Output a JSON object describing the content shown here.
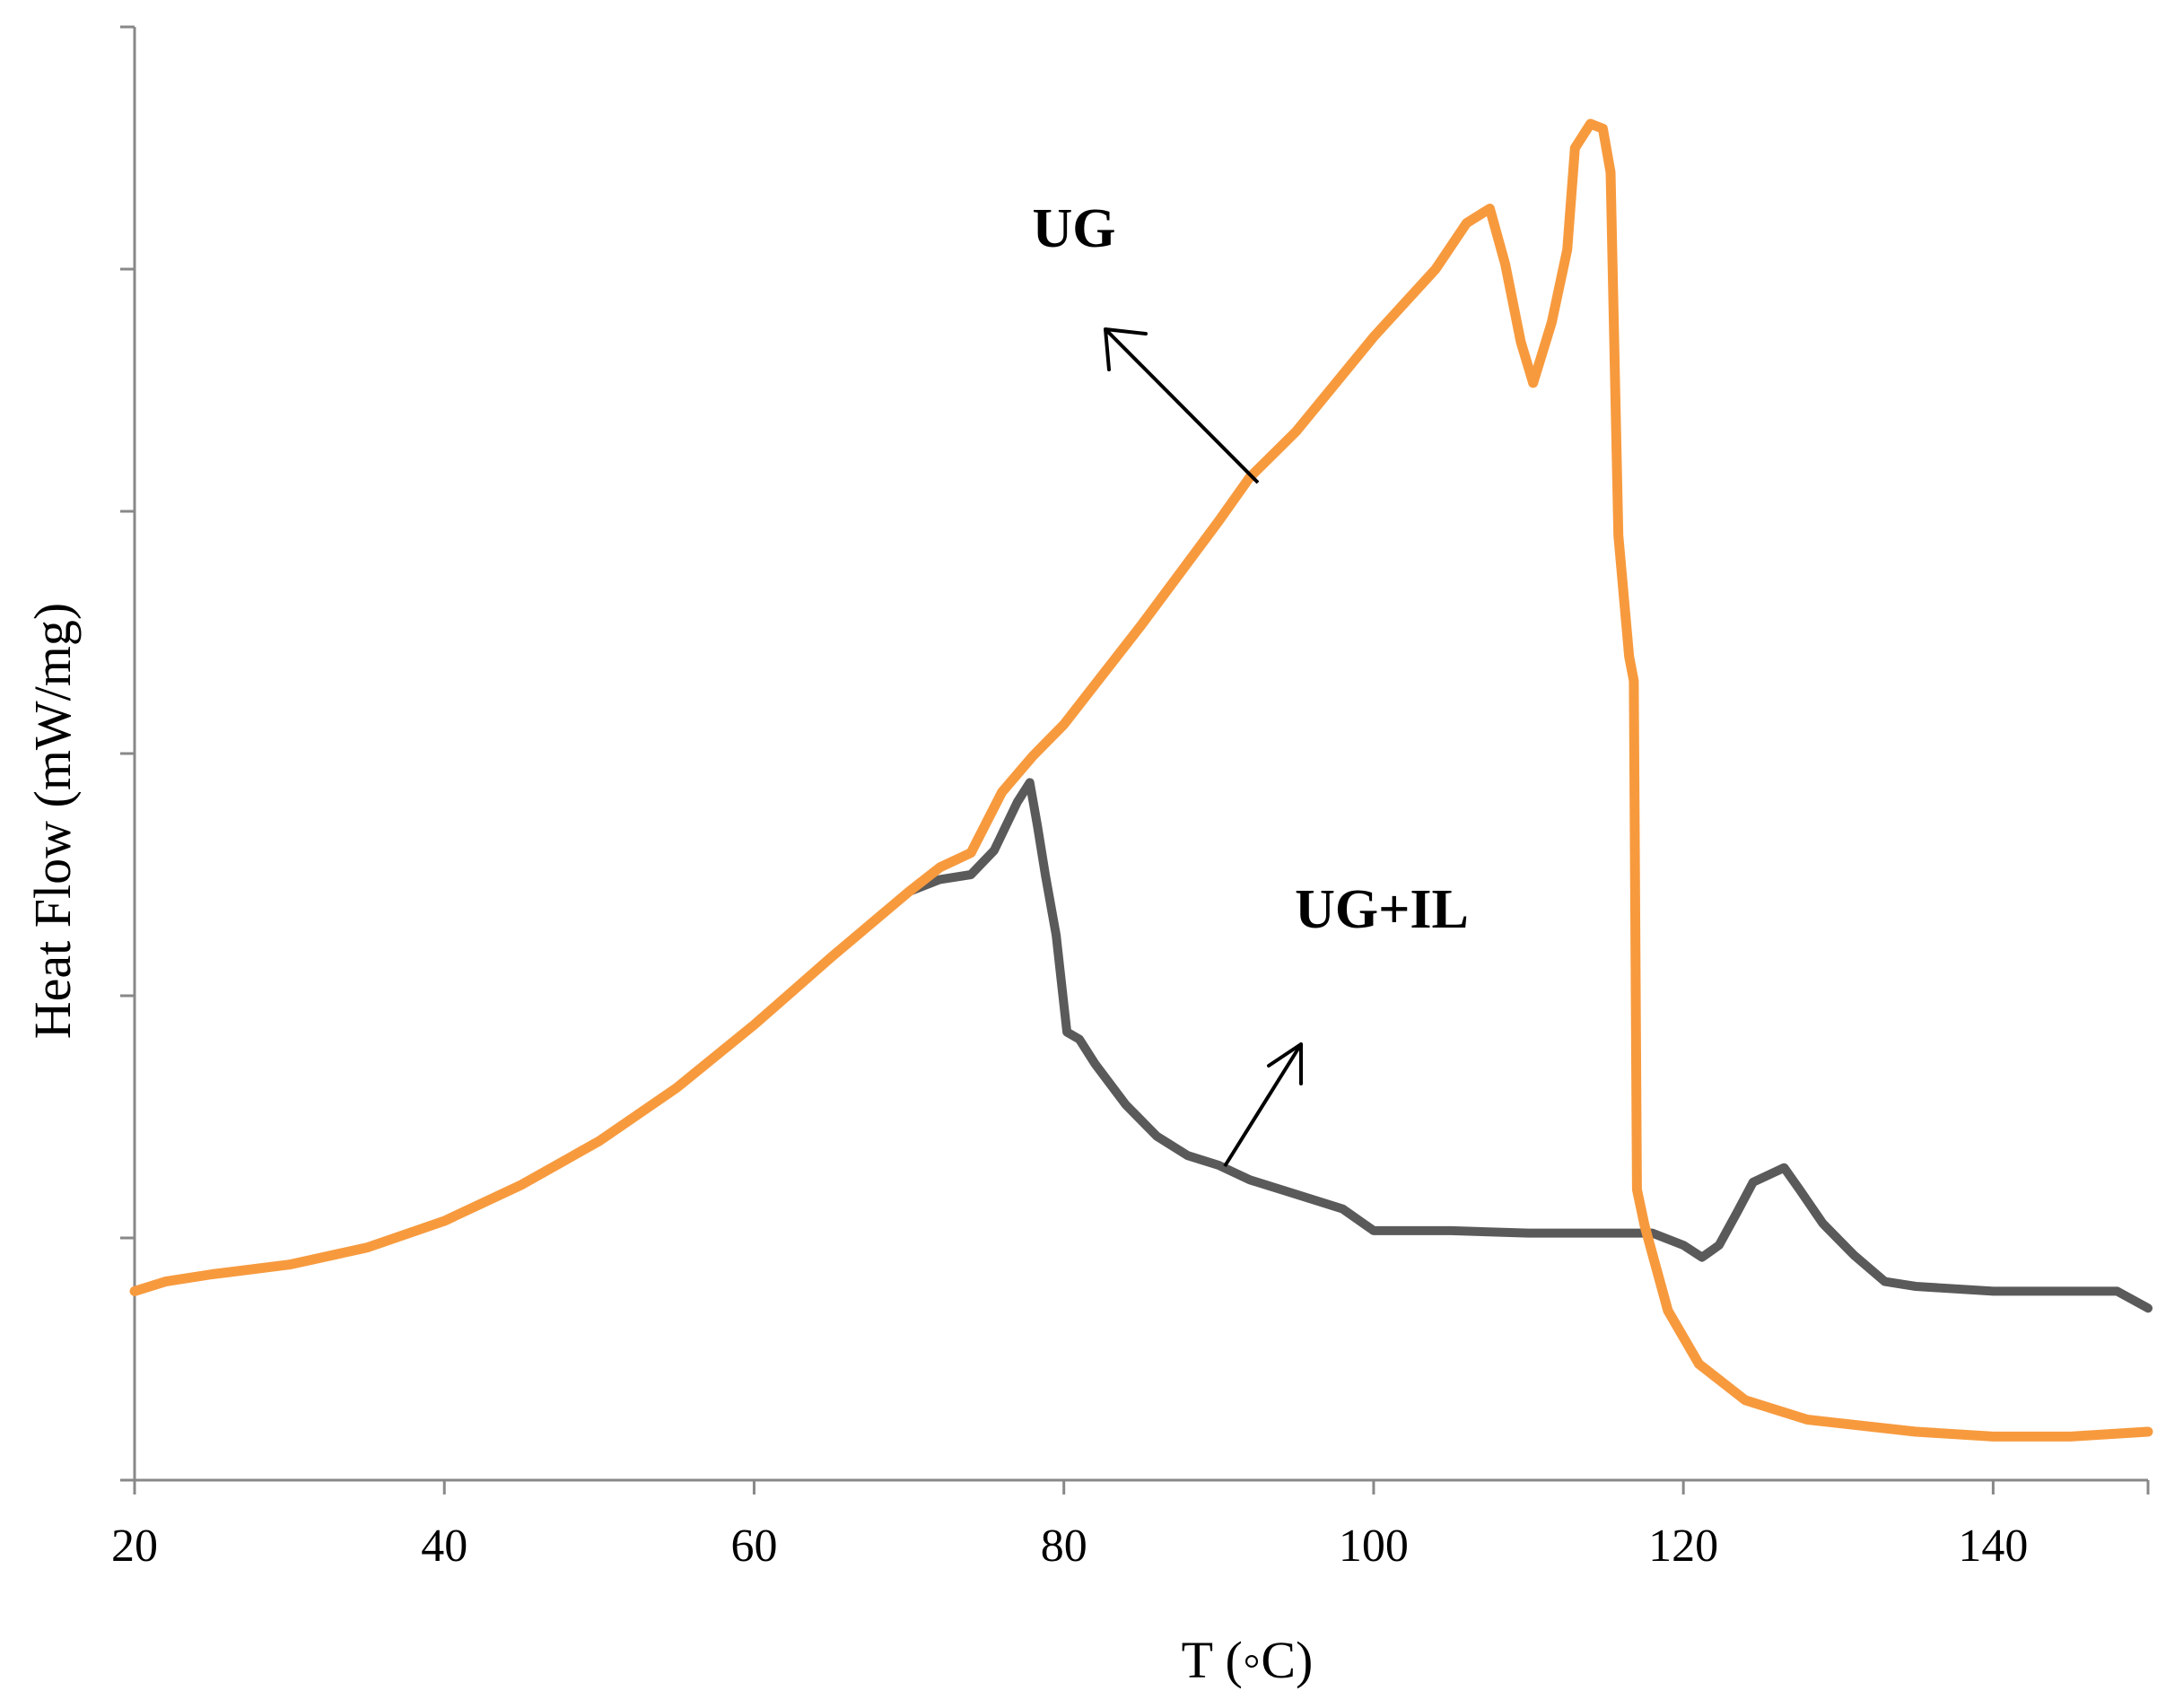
{
  "chart_data": {
    "type": "line",
    "title": "",
    "xlabel": "T (◦C)",
    "ylabel": "Heat Flow (mW/mg)",
    "xlim": [
      20,
      150
    ],
    "ylim": [
      0,
      6
    ],
    "y_tick_labels_shown": false,
    "x_ticks": [
      20,
      40,
      60,
      80,
      100,
      120,
      140
    ],
    "grid": false,
    "legend": "none",
    "annotations": [
      {
        "text": "UG",
        "target_series": "UG"
      },
      {
        "text": "UG+IL",
        "target_series": "UG+IL"
      }
    ],
    "series": [
      {
        "name": "UG",
        "color": "#F79A3E",
        "points": [
          [
            20,
            0.78
          ],
          [
            22,
            0.82
          ],
          [
            25,
            0.85
          ],
          [
            30,
            0.89
          ],
          [
            35,
            0.96
          ],
          [
            40,
            1.07
          ],
          [
            45,
            1.22
          ],
          [
            50,
            1.4
          ],
          [
            55,
            1.62
          ],
          [
            60,
            1.88
          ],
          [
            65,
            2.16
          ],
          [
            70,
            2.43
          ],
          [
            72,
            2.53
          ],
          [
            74,
            2.59
          ],
          [
            76,
            2.84
          ],
          [
            78,
            2.99
          ],
          [
            80,
            3.12
          ],
          [
            85,
            3.53
          ],
          [
            90,
            3.96
          ],
          [
            92,
            4.14
          ],
          [
            95,
            4.33
          ],
          [
            100,
            4.72
          ],
          [
            104,
            5.0
          ],
          [
            106,
            5.19
          ],
          [
            107.5,
            5.25
          ],
          [
            108.5,
            5.02
          ],
          [
            109.5,
            4.7
          ],
          [
            110.3,
            4.53
          ],
          [
            111.5,
            4.78
          ],
          [
            112.5,
            5.08
          ],
          [
            113,
            5.5
          ],
          [
            114,
            5.6
          ],
          [
            114.8,
            5.58
          ],
          [
            115.3,
            5.4
          ],
          [
            115.8,
            3.9
          ],
          [
            116.5,
            3.4
          ],
          [
            116.8,
            3.3
          ],
          [
            117,
            1.2
          ],
          [
            117.5,
            1.05
          ],
          [
            119,
            0.7
          ],
          [
            121,
            0.48
          ],
          [
            124,
            0.33
          ],
          [
            128,
            0.25
          ],
          [
            135,
            0.2
          ],
          [
            140,
            0.18
          ],
          [
            145,
            0.18
          ],
          [
            150,
            0.2
          ]
        ]
      },
      {
        "name": "UG+IL",
        "color": "#5A5A5A",
        "points": [
          [
            70,
            2.43
          ],
          [
            72,
            2.48
          ],
          [
            74,
            2.5
          ],
          [
            75.5,
            2.6
          ],
          [
            77,
            2.8
          ],
          [
            77.8,
            2.88
          ],
          [
            78.3,
            2.7
          ],
          [
            78.8,
            2.5
          ],
          [
            79.5,
            2.25
          ],
          [
            80.2,
            1.85
          ],
          [
            81,
            1.82
          ],
          [
            82,
            1.72
          ],
          [
            84,
            1.55
          ],
          [
            86,
            1.42
          ],
          [
            88,
            1.34
          ],
          [
            90,
            1.3
          ],
          [
            92,
            1.24
          ],
          [
            95,
            1.18
          ],
          [
            98,
            1.12
          ],
          [
            100,
            1.03
          ],
          [
            105,
            1.03
          ],
          [
            110,
            1.02
          ],
          [
            115,
            1.02
          ],
          [
            118,
            1.02
          ],
          [
            120,
            0.97
          ],
          [
            121.2,
            0.92
          ],
          [
            122.3,
            0.97
          ],
          [
            123.5,
            1.11
          ],
          [
            124.5,
            1.23
          ],
          [
            126.5,
            1.29
          ],
          [
            127.5,
            1.2
          ],
          [
            129,
            1.06
          ],
          [
            131,
            0.93
          ],
          [
            133,
            0.82
          ],
          [
            135,
            0.8
          ],
          [
            140,
            0.78
          ],
          [
            145,
            0.78
          ],
          [
            148,
            0.78
          ],
          [
            150,
            0.71
          ]
        ]
      }
    ]
  }
}
